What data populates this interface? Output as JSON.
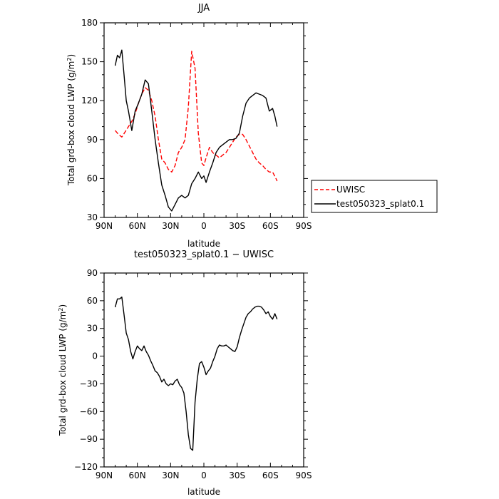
{
  "chart_data": [
    {
      "type": "line",
      "title": "JJA",
      "xlabel": "latitude",
      "ylabel_main": "Total grd-box cloud LWP",
      "ylabel_unit": "(g/m",
      "ylabel_sup": "2",
      "ylabel_close": ")",
      "xlim": [
        90,
        -90
      ],
      "ylim": [
        30,
        180
      ],
      "xticks": [
        {
          "v": 90,
          "label": "90N"
        },
        {
          "v": 60,
          "label": "60N"
        },
        {
          "v": 30,
          "label": "30N"
        },
        {
          "v": 0,
          "label": "0"
        },
        {
          "v": -30,
          "label": "30S"
        },
        {
          "v": -60,
          "label": "60S"
        },
        {
          "v": -90,
          "label": "90S"
        }
      ],
      "yticks": [
        30,
        60,
        90,
        120,
        150,
        180
      ],
      "legend_position": "right",
      "series": [
        {
          "name": "UWISC",
          "color": "#ff0000",
          "dash": true,
          "x": [
            80,
            77,
            74,
            71,
            68,
            65,
            62,
            59,
            56,
            53,
            50,
            47,
            44,
            41,
            38,
            35,
            32,
            29,
            26,
            23,
            20,
            17,
            14,
            11,
            8,
            5,
            2,
            0,
            -2,
            -5,
            -8,
            -11,
            -14,
            -17,
            -20,
            -23,
            -26,
            -29,
            -32,
            -35,
            -38,
            -41,
            -44,
            -47,
            -50,
            -53,
            -56,
            -59,
            -62,
            -65,
            -66
          ],
          "y": [
            97,
            94,
            92,
            96,
            100,
            104,
            110,
            118,
            125,
            130,
            128,
            120,
            108,
            90,
            75,
            72,
            67,
            65,
            70,
            80,
            84,
            90,
            115,
            158,
            145,
            95,
            72,
            70,
            76,
            84,
            80,
            78,
            76,
            78,
            80,
            84,
            88,
            92,
            94,
            94,
            90,
            85,
            80,
            75,
            72,
            70,
            67,
            65,
            65,
            60,
            58
          ]
        },
        {
          "name": "test050323_splat0.1",
          "color": "#000000",
          "dash": false,
          "x": [
            80,
            78,
            76,
            74,
            72,
            70,
            68,
            65,
            62,
            59,
            56,
            53,
            50,
            47,
            44,
            41,
            38,
            35,
            32,
            29,
            26,
            23,
            20,
            17,
            14,
            11,
            8,
            5,
            2,
            0,
            -2,
            -5,
            -8,
            -11,
            -14,
            -17,
            -20,
            -23,
            -26,
            -29,
            -32,
            -35,
            -38,
            -41,
            -44,
            -47,
            -50,
            -53,
            -56,
            -59,
            -62,
            -64,
            -66
          ],
          "y": [
            147,
            155,
            153,
            159,
            140,
            120,
            112,
            97,
            112,
            118,
            125,
            136,
            133,
            112,
            90,
            72,
            55,
            47,
            38,
            35,
            40,
            45,
            47,
            45,
            47,
            56,
            60,
            65,
            60,
            62,
            57,
            65,
            72,
            80,
            84,
            86,
            88,
            90,
            90,
            91,
            95,
            108,
            118,
            122,
            124,
            126,
            125,
            124,
            122,
            112,
            114,
            108,
            100
          ]
        }
      ]
    },
    {
      "type": "line",
      "title": "test050323_splat0.1 − UWISC",
      "xlabel": "latitude",
      "ylabel_main": "Total grd-box cloud LWP",
      "ylabel_unit": "(g/m",
      "ylabel_sup": "2",
      "ylabel_close": ")",
      "xlim": [
        90,
        -90
      ],
      "ylim": [
        -120,
        90
      ],
      "xticks": [
        {
          "v": 90,
          "label": "90N"
        },
        {
          "v": 60,
          "label": "60N"
        },
        {
          "v": 30,
          "label": "30N"
        },
        {
          "v": 0,
          "label": "0"
        },
        {
          "v": -30,
          "label": "30S"
        },
        {
          "v": -60,
          "label": "60S"
        },
        {
          "v": -90,
          "label": "90S"
        }
      ],
      "yticks": [
        -120,
        -90,
        -60,
        -30,
        0,
        30,
        60,
        90
      ],
      "series": [
        {
          "name": "",
          "color": "#000000",
          "dash": false,
          "x": [
            80,
            78,
            76,
            74,
            72,
            70,
            68,
            66,
            64,
            62,
            60,
            58,
            56,
            54,
            52,
            50,
            48,
            46,
            44,
            42,
            40,
            38,
            36,
            34,
            32,
            30,
            28,
            26,
            24,
            22,
            20,
            18,
            16,
            14,
            12,
            10,
            8,
            6,
            4,
            2,
            0,
            -2,
            -4,
            -6,
            -8,
            -10,
            -12,
            -14,
            -16,
            -18,
            -20,
            -22,
            -24,
            -26,
            -28,
            -30,
            -32,
            -34,
            -36,
            -38,
            -40,
            -42,
            -44,
            -46,
            -48,
            -50,
            -52,
            -54,
            -56,
            -58,
            -60,
            -62,
            -64,
            -66
          ],
          "y": [
            53,
            62,
            62,
            64,
            45,
            25,
            18,
            5,
            -3,
            5,
            11,
            8,
            6,
            11,
            5,
            1,
            -5,
            -10,
            -16,
            -18,
            -22,
            -28,
            -25,
            -30,
            -32,
            -30,
            -31,
            -27,
            -25,
            -31,
            -34,
            -40,
            -60,
            -85,
            -100,
            -102,
            -50,
            -25,
            -8,
            -6,
            -12,
            -20,
            -16,
            -13,
            -6,
            0,
            8,
            12,
            11,
            11,
            12,
            10,
            8,
            6,
            5,
            10,
            20,
            28,
            35,
            42,
            46,
            48,
            51,
            53,
            54,
            54,
            53,
            50,
            46,
            48,
            43,
            40,
            46,
            40
          ]
        }
      ]
    }
  ]
}
